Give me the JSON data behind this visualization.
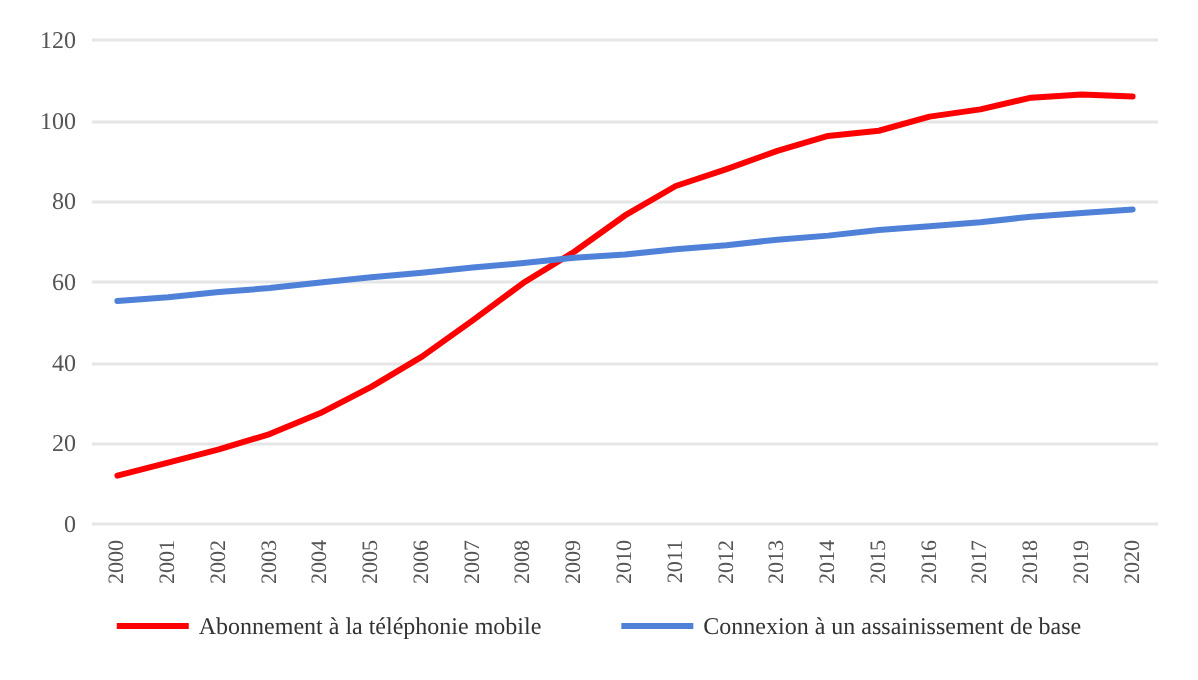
{
  "chart_data": {
    "type": "line",
    "categories": [
      "2000",
      "2001",
      "2002",
      "2003",
      "2004",
      "2005",
      "2006",
      "2007",
      "2008",
      "2009",
      "2010",
      "2011",
      "2012",
      "2013",
      "2014",
      "2015",
      "2016",
      "2017",
      "2018",
      "2019",
      "2020"
    ],
    "series": [
      {
        "name": "Abonnement à la téléphonie mobile",
        "color": "#ff0000",
        "values": [
          12,
          15.2,
          18.5,
          22.3,
          27.5,
          34,
          41.5,
          50.5,
          59.8,
          67.5,
          76.5,
          83.8,
          88,
          92.5,
          96.2,
          97.5,
          101,
          102.8,
          105.7,
          106.5,
          106
        ]
      },
      {
        "name": "Connexion à un assainissement de base",
        "color": "#4f81d9",
        "values": [
          55.3,
          56.2,
          57.5,
          58.5,
          59.9,
          61.2,
          62.3,
          63.6,
          64.7,
          66,
          66.8,
          68.1,
          69.1,
          70.5,
          71.5,
          72.9,
          73.8,
          74.8,
          76.2,
          77.1,
          78
        ]
      }
    ],
    "ylim": [
      0,
      120
    ],
    "yticks": [
      0,
      20,
      40,
      60,
      80,
      100,
      120
    ],
    "grid": "y",
    "legend": "bottom",
    "marker": "none",
    "line_style": "solid"
  }
}
